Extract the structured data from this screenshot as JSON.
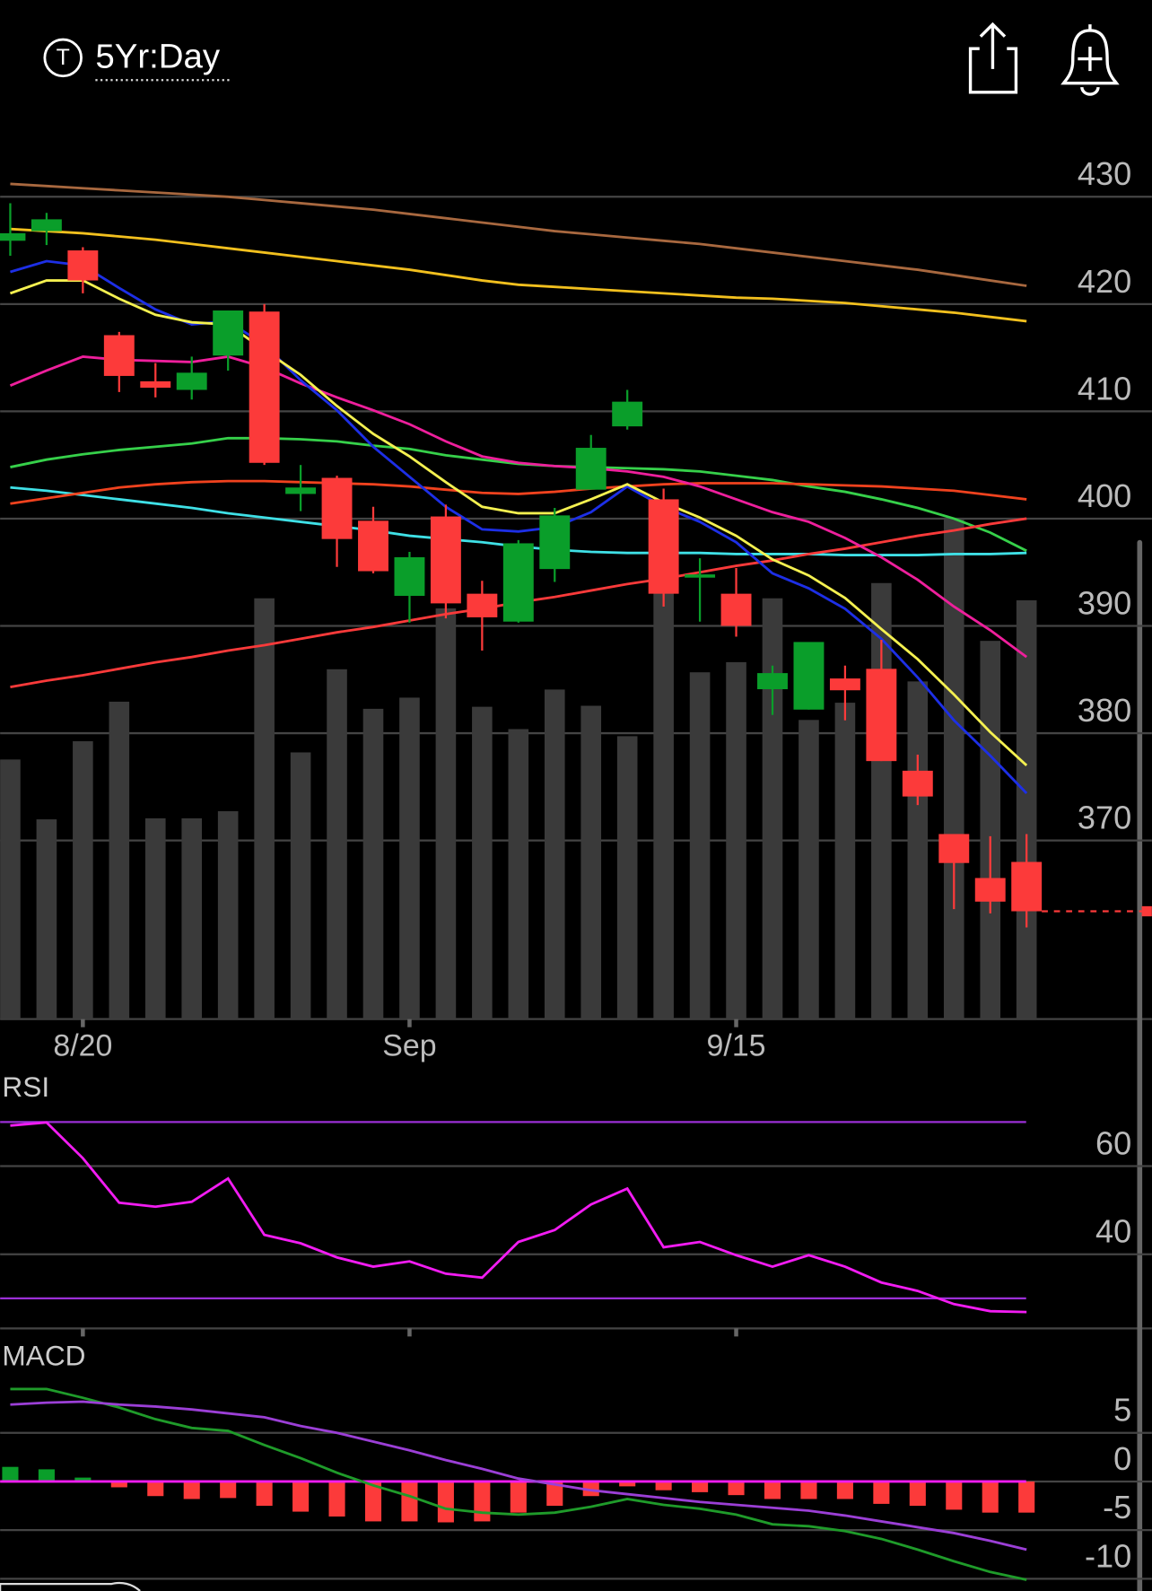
{
  "header": {
    "icon_letter": "T",
    "title": "5Yr:Day"
  },
  "chart_data": [
    {
      "type": "candlestick",
      "categories": [
        null,
        null,
        "8/20",
        null,
        null,
        null,
        null,
        null,
        null,
        null,
        null,
        "Sep",
        null,
        null,
        null,
        null,
        null,
        null,
        null,
        null,
        "9/15",
        null,
        null,
        null,
        null,
        null,
        null,
        null,
        null
      ],
      "open": [
        425.9,
        426.8,
        425.0,
        417.1,
        412.8,
        412.0,
        415.2,
        419.3,
        402.3,
        403.8,
        399.8,
        392.8,
        400.2,
        393.0,
        390.4,
        395.3,
        402.7,
        408.6,
        401.8,
        394.5,
        393.0,
        384.1,
        382.2,
        385.1,
        386.0,
        376.5,
        370.6,
        366.5,
        368.0
      ],
      "high": [
        429.4,
        428.5,
        425.3,
        417.4,
        414.5,
        415.1,
        419.4,
        420.0,
        405.0,
        404.0,
        401.1,
        396.9,
        401.3,
        394.2,
        398.0,
        401.0,
        407.8,
        412.0,
        402.8,
        396.3,
        395.4,
        386.3,
        388.5,
        386.3,
        388.7,
        378.0,
        370.6,
        370.4,
        370.6
      ],
      "low": [
        424.5,
        425.5,
        421.0,
        411.8,
        411.3,
        411.1,
        413.8,
        405.0,
        400.7,
        395.5,
        394.9,
        390.3,
        390.7,
        387.7,
        390.3,
        394.1,
        402.7,
        408.3,
        391.8,
        390.4,
        389.0,
        381.7,
        382.2,
        381.2,
        377.4,
        373.3,
        363.6,
        363.2,
        361.9
      ],
      "close": [
        426.6,
        427.9,
        422.2,
        413.3,
        412.2,
        413.6,
        419.4,
        405.2,
        402.9,
        398.1,
        395.1,
        396.4,
        392.1,
        390.8,
        397.7,
        400.3,
        406.6,
        410.9,
        393.0,
        394.8,
        390.0,
        385.6,
        388.5,
        384.0,
        377.4,
        374.1,
        367.9,
        364.3,
        363.4
      ],
      "up_color": "#0a9e2a",
      "down_color": "#fc3a3a",
      "volume": {
        "values": [
          256,
          197,
          274,
          313,
          198,
          198,
          205,
          415,
          263,
          345,
          306,
          317,
          405,
          308,
          286,
          325,
          309,
          279,
          445,
          342,
          352,
          415,
          295,
          312,
          430,
          333,
          493,
          373,
          413
        ],
        "lim": [
          0,
          885
        ],
        "color": "#3a3a3a"
      },
      "series": [
        {
          "color": "#a8683f",
          "values": [
            431.2,
            431.0,
            430.8,
            430.6,
            430.4,
            430.2,
            430.0,
            429.7,
            429.4,
            429.1,
            428.8,
            428.4,
            428.0,
            427.6,
            427.2,
            426.8,
            426.5,
            426.2,
            425.9,
            425.6,
            425.2,
            424.8,
            424.4,
            424.0,
            423.6,
            423.2,
            422.7,
            422.2,
            421.7
          ]
        },
        {
          "color": "#f2c01e",
          "values": [
            427.0,
            426.8,
            426.6,
            426.3,
            426.0,
            425.6,
            425.2,
            424.8,
            424.4,
            424.0,
            423.6,
            423.2,
            422.7,
            422.2,
            421.8,
            421.6,
            421.4,
            421.2,
            421.0,
            420.8,
            420.6,
            420.5,
            420.3,
            420.1,
            419.8,
            419.5,
            419.2,
            418.8,
            418.4
          ]
        },
        {
          "color": "#36d04a",
          "values": [
            404.8,
            405.5,
            406.0,
            406.4,
            406.7,
            407.0,
            407.5,
            407.5,
            407.4,
            407.2,
            406.8,
            406.5,
            405.9,
            405.5,
            405.1,
            404.9,
            404.8,
            404.7,
            404.6,
            404.4,
            404.0,
            403.6,
            403.0,
            402.5,
            401.8,
            401.0,
            400.0,
            398.7,
            397.0
          ]
        },
        {
          "color": "#3fe0e6",
          "values": [
            402.9,
            402.6,
            402.2,
            401.8,
            401.4,
            401.0,
            400.5,
            400.1,
            399.7,
            399.3,
            398.9,
            398.4,
            398.1,
            397.8,
            397.4,
            397.1,
            396.9,
            396.8,
            396.8,
            396.8,
            396.7,
            396.7,
            396.7,
            396.6,
            396.6,
            396.6,
            396.7,
            396.7,
            396.8
          ]
        },
        {
          "color": "#f0421e",
          "values": [
            401.4,
            401.9,
            402.4,
            402.9,
            403.2,
            403.4,
            403.5,
            403.5,
            403.4,
            403.3,
            403.2,
            403.0,
            402.7,
            402.4,
            402.3,
            402.5,
            402.8,
            403.0,
            403.2,
            403.3,
            403.3,
            403.3,
            403.2,
            403.1,
            403.0,
            402.8,
            402.6,
            402.2,
            401.8
          ]
        },
        {
          "color": "#fa3a3a",
          "values": [
            384.3,
            384.9,
            385.4,
            386.0,
            386.6,
            387.1,
            387.7,
            388.2,
            388.8,
            389.4,
            389.9,
            390.5,
            391.1,
            391.6,
            392.2,
            392.7,
            393.3,
            393.9,
            394.4,
            395.0,
            395.6,
            396.1,
            396.7,
            397.2,
            397.8,
            398.4,
            398.9,
            399.5,
            400.0
          ]
        },
        {
          "color": "#ee1f9c",
          "values": [
            412.4,
            413.8,
            415.1,
            414.8,
            414.7,
            414.6,
            415.1,
            414.1,
            412.6,
            411.3,
            410.1,
            408.8,
            407.2,
            405.8,
            405.2,
            404.9,
            404.7,
            404.4,
            403.9,
            403.0,
            401.8,
            400.6,
            399.7,
            398.2,
            396.4,
            394.3,
            391.8,
            389.6,
            387.1
          ]
        },
        {
          "color": "#1d2fe6",
          "values": [
            423.0,
            424.0,
            423.6,
            421.5,
            419.5,
            418.1,
            418.4,
            416.2,
            412.9,
            410.1,
            406.7,
            403.9,
            401.1,
            399.0,
            398.8,
            399.2,
            400.6,
            403.0,
            401.1,
            399.7,
            397.8,
            394.9,
            393.5,
            391.6,
            388.8,
            385.2,
            381.2,
            377.9,
            374.4
          ]
        },
        {
          "color": "#f4f050",
          "values": [
            421.0,
            422.2,
            422.2,
            420.5,
            419.0,
            418.3,
            418.1,
            415.7,
            413.4,
            410.5,
            407.9,
            405.8,
            403.4,
            401.1,
            400.5,
            400.5,
            401.8,
            403.2,
            401.5,
            400.1,
            398.4,
            396.2,
            394.7,
            392.6,
            389.7,
            386.9,
            383.6,
            380.1,
            377.0
          ]
        }
      ],
      "last_price": 363.4,
      "last_price_color": "#fc3a3a",
      "ylim": [
        353.35,
        437
      ],
      "yticks": [
        430,
        420,
        410,
        400,
        390,
        380,
        370
      ],
      "grid": true
    },
    {
      "type": "line",
      "title": "RSI",
      "series": [
        {
          "color": "#f21cf2",
          "values": [
            69.2,
            69.9,
            61.8,
            51.7,
            50.8,
            51.9,
            57.2,
            44.4,
            42.5,
            39.3,
            37.2,
            38.4,
            35.6,
            34.7,
            42.8,
            45.5,
            51.3,
            54.9,
            41.6,
            42.8,
            39.8,
            37.2,
            39.8,
            37.2,
            33.6,
            31.7,
            28.7,
            27.1,
            26.9
          ]
        }
      ],
      "bands": [
        70,
        30
      ],
      "band_color": "#9b2fd6",
      "ylim": [
        23.2,
        80.7
      ],
      "yticks": [
        60,
        40
      ],
      "grid": true
    },
    {
      "type": "macd",
      "title": "MACD",
      "series": [
        {
          "color": "#1f9b2a",
          "values": [
            9.5,
            9.5,
            8.6,
            7.6,
            6.4,
            5.5,
            5.2,
            3.75,
            2.4,
            0.9,
            -0.4,
            -1.5,
            -2.8,
            -3.2,
            -3.4,
            -3.2,
            -2.6,
            -1.8,
            -2.4,
            -2.8,
            -3.4,
            -4.4,
            -4.6,
            -5.1,
            -5.9,
            -7.0,
            -8.2,
            -9.3,
            -10.1
          ]
        },
        {
          "color": "#9b3fd6",
          "values": [
            7.9,
            8.1,
            8.2,
            7.9,
            7.7,
            7.4,
            7.0,
            6.6,
            5.7,
            5.0,
            4.1,
            3.2,
            2.2,
            1.3,
            0.3,
            -0.3,
            -0.9,
            -1.3,
            -1.7,
            -2.1,
            -2.4,
            -2.7,
            -3.0,
            -3.5,
            -4.1,
            -4.7,
            -5.3,
            -6.1,
            -7.0
          ]
        }
      ],
      "histogram": {
        "values": [
          1.5,
          1.25,
          0.4,
          -0.6,
          -1.5,
          -1.8,
          -1.7,
          -2.5,
          -3.1,
          -3.6,
          -4.1,
          -4.1,
          -4.2,
          -4.1,
          -3.2,
          -2.5,
          -1.5,
          -0.5,
          -0.9,
          -1.1,
          -1.4,
          -1.8,
          -1.8,
          -1.8,
          -2.3,
          -2.5,
          -2.9,
          -3.2,
          -3.2
        ],
        "up_color": "#0a9e2a",
        "down_color": "#fc3a3a"
      },
      "zero_color": "#f21cf2",
      "ylim": [
        -11.67,
        14.17
      ],
      "yticks": [
        5,
        0,
        -5,
        -10
      ],
      "grid": true
    }
  ]
}
